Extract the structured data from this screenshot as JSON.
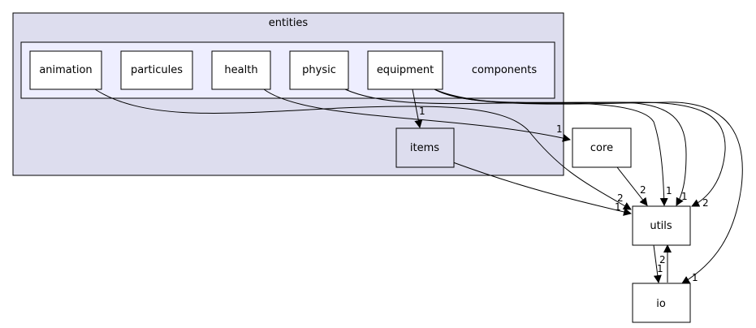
{
  "clusters": {
    "outer": {
      "label": "entities",
      "fill": "#ddddee"
    },
    "inner": {
      "label": "components",
      "fill": "#eeeeff"
    }
  },
  "nodes": {
    "animation": "animation",
    "particules": "particules",
    "health": "health",
    "physic": "physic",
    "equipment": "equipment",
    "items": "items",
    "core": "core",
    "utils": "utils",
    "io": "io"
  },
  "edge_labels": {
    "equipment_items": "1",
    "health_core": "1",
    "core_utils": "2",
    "equipment_utils_a": "1",
    "equipment_utils_b": "1",
    "equipment_utils_c": "2",
    "animation_utils": "2",
    "items_utils": "1",
    "equipment_io": "1",
    "utils_io": "1",
    "io_utils": "2"
  }
}
